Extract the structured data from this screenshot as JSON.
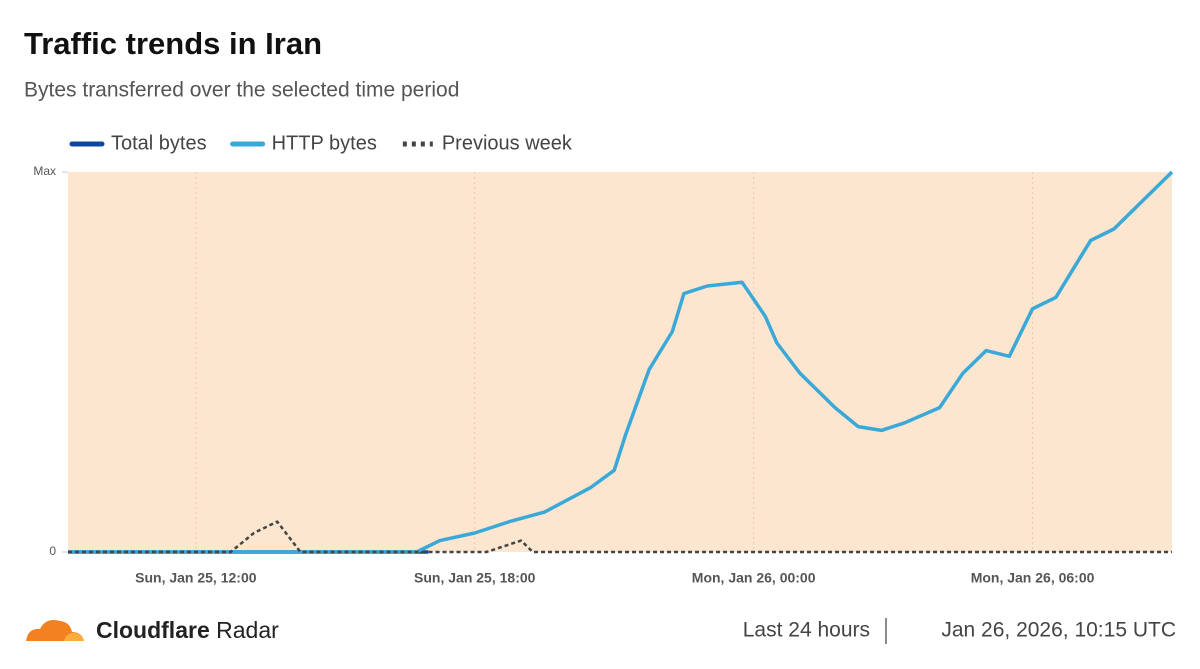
{
  "chart_data": {
    "type": "line",
    "title": "Traffic trends in Iran",
    "subtitle": "Bytes transferred over the selected time period",
    "xlim": [
      "Sun, Jan 25, 09:15",
      "Mon, Jan 26, 09:00"
    ],
    "xticks": [
      "Sun, Jan 25, 12:00",
      "Sun, Jan 25, 18:00",
      "Mon, Jan 26, 00:00",
      "Mon, Jan 26, 06:00"
    ],
    "ylim": [
      0,
      100
    ],
    "yticks": [
      0,
      {
        "value": 100,
        "label": "Max"
      }
    ],
    "grid": true,
    "background": "#fce6cf",
    "series": [
      {
        "name": "Total bytes",
        "color": "#0d47a1",
        "dash": false,
        "x": [
          "Sun, Jan 25, 09:15",
          "Sun, Jan 25, 17:00"
        ],
        "values": [
          0,
          0
        ]
      },
      {
        "name": "HTTP bytes",
        "color": "#3aa8d8",
        "dash": false,
        "x": [
          "Sun, Jan 25, 09:15",
          "Sun, Jan 25, 16:45",
          "Sun, Jan 25, 17:15",
          "Sun, Jan 25, 18:00",
          "Sun, Jan 25, 18:45",
          "Sun, Jan 25, 19:30",
          "Sun, Jan 25, 20:30",
          "Sun, Jan 25, 21:00",
          "Sun, Jan 25, 21:15",
          "Sun, Jan 25, 21:45",
          "Sun, Jan 25, 22:15",
          "Sun, Jan 25, 22:30",
          "Sun, Jan 25, 23:00",
          "Sun, Jan 25, 23:45",
          "Mon, Jan 26, 00:15",
          "Mon, Jan 26, 00:30",
          "Mon, Jan 26, 01:00",
          "Mon, Jan 26, 01:45",
          "Mon, Jan 26, 02:15",
          "Mon, Jan 26, 02:45",
          "Mon, Jan 26, 03:15",
          "Mon, Jan 26, 04:00",
          "Mon, Jan 26, 04:30",
          "Mon, Jan 26, 05:00",
          "Mon, Jan 26, 05:30",
          "Mon, Jan 26, 06:00",
          "Mon, Jan 26, 06:30",
          "Mon, Jan 26, 07:15",
          "Mon, Jan 26, 07:45",
          "Mon, Jan 26, 08:15",
          "Mon, Jan 26, 09:00"
        ],
        "values": [
          0,
          0,
          3,
          5,
          8,
          10.5,
          17,
          21.5,
          31,
          48,
          58,
          68,
          70,
          71,
          62,
          55,
          47,
          38,
          33,
          32,
          34,
          38,
          47,
          53,
          51.5,
          64,
          67,
          82,
          85,
          91,
          100
        ]
      },
      {
        "name": "Previous week",
        "color": "#444444",
        "dash": true,
        "x": [
          "Sun, Jan 25, 09:15",
          "Sun, Jan 25, 12:45",
          "Sun, Jan 25, 13:15",
          "Sun, Jan 25, 13:45",
          "Sun, Jan 25, 14:15",
          "Sun, Jan 25, 18:15",
          "Sun, Jan 25, 18:45",
          "Sun, Jan 25, 19:00",
          "Sun, Jan 25, 19:15",
          "Mon, Jan 26, 09:00"
        ],
        "values": [
          0,
          0,
          5,
          8,
          0,
          0,
          2,
          3,
          0,
          0
        ]
      }
    ]
  },
  "footer": {
    "brand": "Cloudflare",
    "product": "Radar",
    "range": "Last 24 hours",
    "timestamp": "Jan 26, 2026, 10:15 UTC"
  }
}
